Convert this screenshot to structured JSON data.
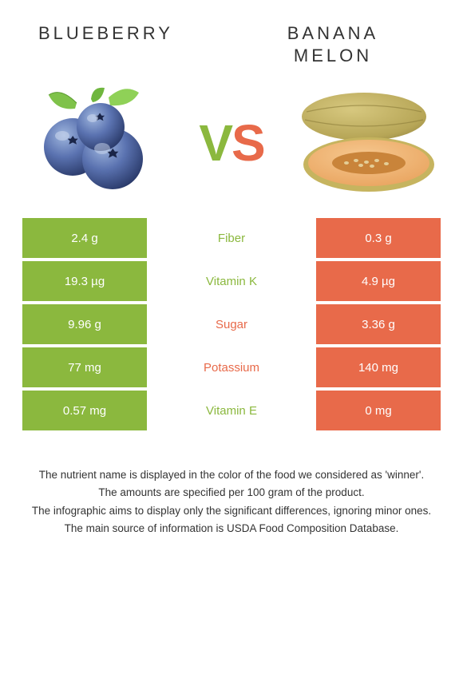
{
  "colors": {
    "left": "#8bb83e",
    "right": "#e86a4a",
    "text": "#333333",
    "bg": "#ffffff"
  },
  "title_left": "BLUEBERRY",
  "title_right_line1": "BANANA",
  "title_right_line2": "MELON",
  "vs_v": "V",
  "vs_s": "S",
  "rows": [
    {
      "left": "2.4 g",
      "label": "Fiber",
      "right": "0.3 g",
      "winner": "left"
    },
    {
      "left": "19.3 µg",
      "label": "Vitamin K",
      "right": "4.9 µg",
      "winner": "left"
    },
    {
      "left": "9.96 g",
      "label": "Sugar",
      "right": "3.36 g",
      "winner": "right"
    },
    {
      "left": "77 mg",
      "label": "Potassium",
      "right": "140 mg",
      "winner": "right"
    },
    {
      "left": "0.57 mg",
      "label": "Vitamin E",
      "right": "0 mg",
      "winner": "left"
    }
  ],
  "notes": [
    "The nutrient name is displayed in the color of the food we considered as 'winner'.",
    "The amounts are specified per 100 gram of the product.",
    "The infographic aims to display only the significant differences, ignoring minor ones.",
    "The main source of information is USDA Food Composition Database."
  ]
}
